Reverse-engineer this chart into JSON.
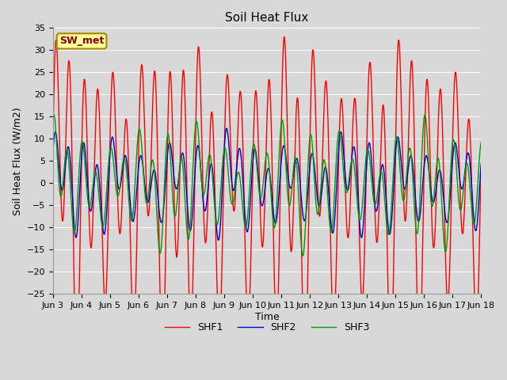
{
  "title": "Soil Heat Flux",
  "xlabel": "Time",
  "ylabel": "Soil Heat Flux (W/m2)",
  "ylim": [
    -25,
    35
  ],
  "xlim_days": 15,
  "x_tick_labels": [
    "Jun 3",
    "Jun 4",
    "Jun 5",
    "Jun 6",
    "Jun 7",
    "Jun 8",
    "Jun 9",
    "Jun 10",
    "Jun 11",
    "Jun 12",
    "Jun 13",
    "Jun 14",
    "Jun 15",
    "Jun 16",
    "Jun 17",
    "Jun 18"
  ],
  "annotation_text": "SW_met",
  "annotation_bg": "#ffff99",
  "annotation_border": "#aa8800",
  "bg_color": "#d8d8d8",
  "line_colors": {
    "SHF1": "#ff0000",
    "SHF2": "#0000cc",
    "SHF3": "#009900"
  },
  "line_width": 1.0,
  "title_fontsize": 11,
  "axis_label_fontsize": 9,
  "tick_fontsize": 8,
  "legend_fontsize": 9
}
